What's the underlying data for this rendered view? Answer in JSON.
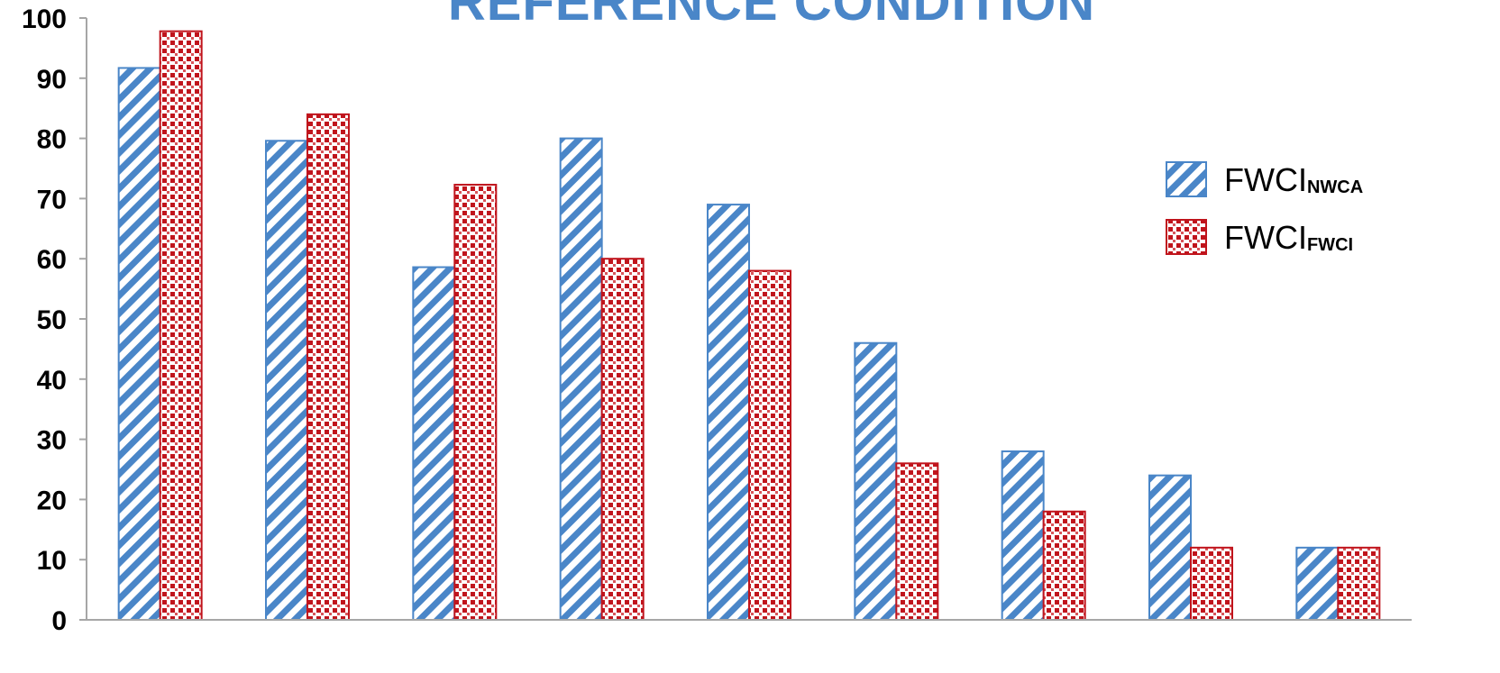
{
  "chart_data": {
    "type": "bar",
    "title": "REFERENCE CONDITION",
    "xlabel": "",
    "ylabel": "",
    "ylim": [
      0,
      100
    ],
    "yticks": [
      0,
      10,
      20,
      30,
      40,
      50,
      60,
      70,
      80,
      90,
      100
    ],
    "categories": [
      "",
      "",
      "",
      "",
      "",
      "",
      "",
      "",
      ""
    ],
    "series": [
      {
        "name": "FWCI",
        "name_subscript": "NWCA",
        "values": [
          91.7,
          79.6,
          58.6,
          80,
          69,
          46,
          28,
          24,
          12
        ],
        "color": "#4a86c8",
        "pattern": "diagonal-stripes"
      },
      {
        "name": "FWCI",
        "name_subscript": "FWCI",
        "values": [
          97.8,
          84,
          72.3,
          60,
          58,
          26,
          18,
          12,
          12
        ],
        "color": "#c0141c",
        "pattern": "dots"
      }
    ],
    "legend_position": "right",
    "grid": false,
    "title_color": "#4a86c8"
  }
}
